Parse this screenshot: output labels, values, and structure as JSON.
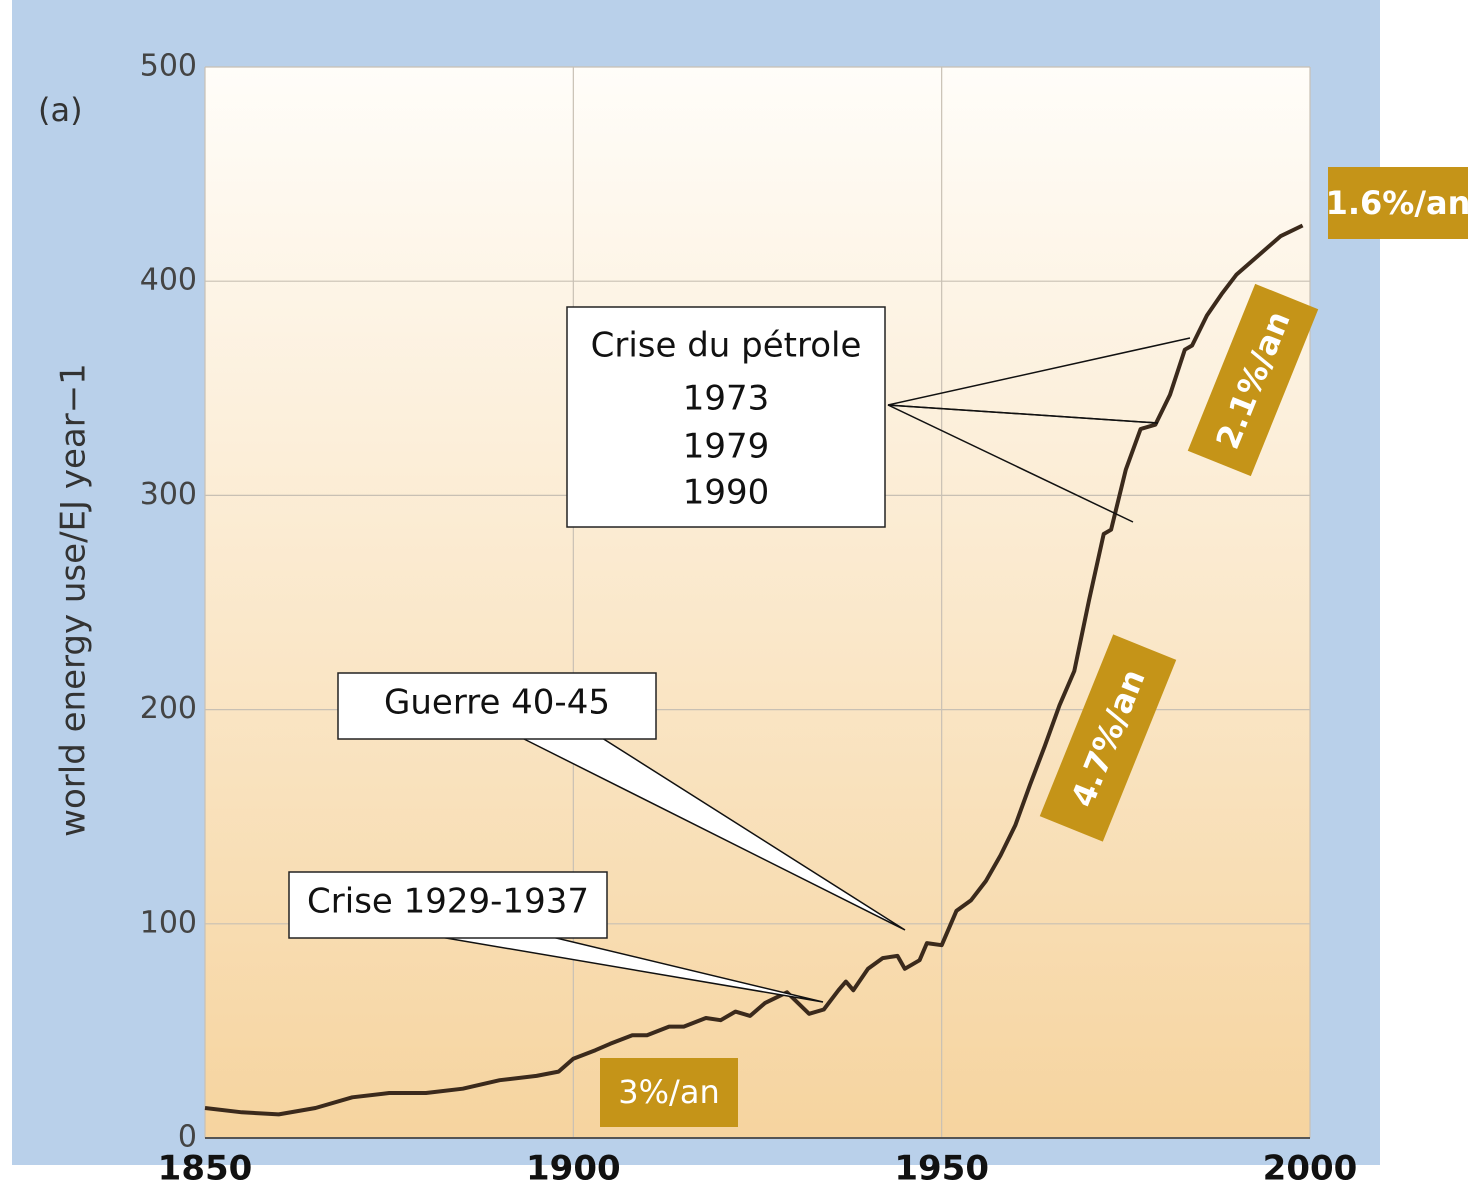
{
  "chart_data": {
    "type": "line",
    "panel_label": "(a)",
    "y_label": "world energy use/EJ year−1",
    "x": [
      1850,
      1855,
      1860,
      1865,
      1870,
      1875,
      1880,
      1885,
      1890,
      1895,
      1898,
      1900,
      1903,
      1905,
      1908,
      1910,
      1913,
      1915,
      1918,
      1920,
      1922,
      1924,
      1926,
      1929,
      1932,
      1934,
      1936,
      1937,
      1938,
      1940,
      1942,
      1944,
      1945,
      1947,
      1948,
      1950,
      1952,
      1954,
      1956,
      1958,
      1960,
      1962,
      1964,
      1966,
      1968,
      1970,
      1972,
      1973,
      1975,
      1977,
      1979,
      1981,
      1983,
      1984,
      1986,
      1988,
      1990,
      1993,
      1996,
      1999
    ],
    "series": [
      {
        "color": "#3b2a1c",
        "values": [
          14,
          12,
          11,
          14,
          19,
          21,
          21,
          23,
          27,
          29,
          31,
          37,
          41,
          44,
          48,
          48,
          52,
          52,
          56,
          55,
          59,
          57,
          63,
          68,
          58,
          60,
          69,
          73,
          69,
          79,
          84,
          85,
          79,
          83,
          91,
          90,
          106,
          111,
          120,
          132,
          146,
          165,
          183,
          202,
          218,
          251,
          282,
          284,
          312,
          331,
          333,
          347,
          368,
          370,
          384,
          394,
          403,
          412,
          421,
          426
        ]
      }
    ],
    "xlim": [
      1850,
      2000
    ],
    "xticks": [
      1850,
      1900,
      1950,
      2000
    ],
    "ylim": [
      0,
      500
    ],
    "yticks": [
      0,
      100,
      200,
      300,
      400,
      500
    ],
    "grid": true,
    "annotations": [
      "Crise du pétrole",
      "1973",
      "1979",
      "1990",
      "Guerre 40-45",
      "Crise 1929-1937"
    ],
    "growth_labels": [
      "1.6%/an",
      "2.1%/an",
      "4.7%/an",
      "3%/an"
    ]
  }
}
